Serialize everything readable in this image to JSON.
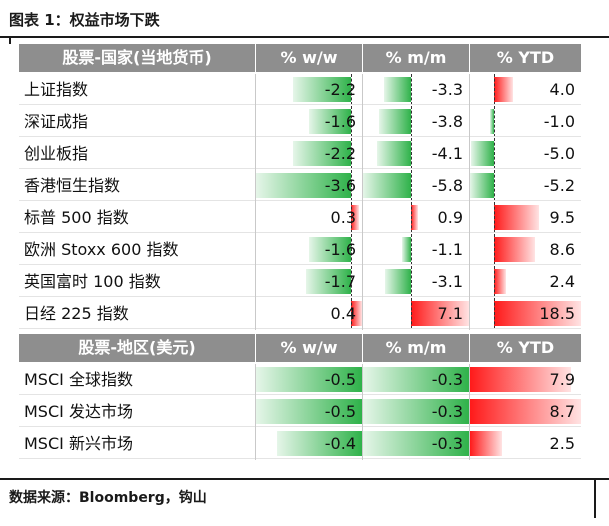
{
  "title": "图表 1：权益市场下跌",
  "source": "数据来源：Bloomberg，钩山",
  "colors": {
    "header_bg": "#8e8e8e",
    "negative": "#2fb24a",
    "positive": "#ff1a1a"
  },
  "chart_data": {
    "type": "table",
    "columns": [
      "% w/w",
      "% m/m",
      "% YTD"
    ],
    "sections": [
      {
        "header": "股票-国家(当地货币)",
        "rows": [
          {
            "label": "上证指数",
            "values": [
              -2.2,
              -3.3,
              4.0
            ],
            "display": [
              "-2.2",
              "-3.3",
              "4.0"
            ]
          },
          {
            "label": "深证成指",
            "values": [
              -1.6,
              -3.8,
              -1.0
            ],
            "display": [
              "-1.6",
              "-3.8",
              "-1.0"
            ]
          },
          {
            "label": "创业板指",
            "values": [
              -2.2,
              -4.1,
              -5.0
            ],
            "display": [
              "-2.2",
              "-4.1",
              "-5.0"
            ]
          },
          {
            "label": "香港恒生指数",
            "values": [
              -3.6,
              -5.8,
              -5.2
            ],
            "display": [
              "-3.6",
              "-5.8",
              "-5.2"
            ]
          },
          {
            "label": "标普 500 指数",
            "values": [
              0.3,
              0.9,
              9.5
            ],
            "display": [
              "0.3",
              "0.9",
              "9.5"
            ]
          },
          {
            "label": "欧洲 Stoxx 600 指数",
            "values": [
              -1.6,
              -1.1,
              8.6
            ],
            "display": [
              "-1.6",
              "-1.1",
              "8.6"
            ]
          },
          {
            "label": "英国富时 100 指数",
            "values": [
              -1.7,
              -3.1,
              2.4
            ],
            "display": [
              "-1.7",
              "-3.1",
              "2.4"
            ]
          },
          {
            "label": "日经 225 指数",
            "values": [
              0.4,
              7.1,
              18.5
            ],
            "display": [
              "0.4",
              "7.1",
              "18.5"
            ]
          }
        ]
      },
      {
        "header": "股票-地区(美元)",
        "rows": [
          {
            "label": "MSCI 全球指数",
            "values": [
              -0.5,
              -0.3,
              7.9
            ],
            "display": [
              "-0.5",
              "-0.3",
              "7.9"
            ]
          },
          {
            "label": "MSCI 发达市场",
            "values": [
              -0.5,
              -0.3,
              8.7
            ],
            "display": [
              "-0.5",
              "-0.3",
              "8.7"
            ]
          },
          {
            "label": "MSCI 新兴市场",
            "values": [
              -0.4,
              -0.3,
              2.5
            ],
            "display": [
              "-0.4",
              "-0.3",
              "2.5"
            ]
          }
        ]
      }
    ]
  }
}
